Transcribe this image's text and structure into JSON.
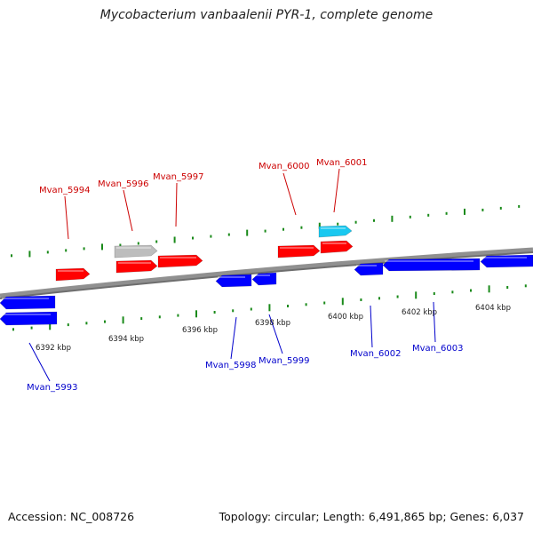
{
  "title": "Mycobacterium vanbaalenii PYR-1, complete genome",
  "footer": {
    "accession": "Accession: NC_008726",
    "summary": "Topology: circular; Length: 6,491,865 bp; Genes: 6,037"
  },
  "colors": {
    "forward_gene": "#ff0000",
    "reverse_gene": "#0000ff",
    "highlight_gene": "#19c8f0",
    "pseudo_gene": "#bdbdbd",
    "backbone": "#888888",
    "ticks": "#1a8a1a",
    "forward_label": "#cc0000",
    "reverse_label": "#0000cc"
  },
  "axis": {
    "unit": "kbp",
    "ticks": [
      {
        "label": "6392 kbp"
      },
      {
        "label": "6394 kbp"
      },
      {
        "label": "6396 kbp"
      },
      {
        "label": "6398 kbp"
      },
      {
        "label": "6400 kbp"
      },
      {
        "label": "6402 kbp"
      },
      {
        "label": "6404 kbp"
      }
    ]
  },
  "genes": [
    {
      "name": "Mvan_5993",
      "strand": "reverse",
      "labeled": true
    },
    {
      "name": "Mvan_5994",
      "strand": "forward",
      "labeled": true
    },
    {
      "name": "Mvan_5996",
      "strand": "forward",
      "labeled": true
    },
    {
      "name": "Mvan_5997",
      "strand": "forward",
      "labeled": true
    },
    {
      "name": "Mvan_5998",
      "strand": "reverse",
      "labeled": true
    },
    {
      "name": "Mvan_5999",
      "strand": "reverse",
      "labeled": true
    },
    {
      "name": "Mvan_6000",
      "strand": "forward",
      "labeled": true
    },
    {
      "name": "Mvan_6001",
      "strand": "forward",
      "labeled": true
    },
    {
      "name": "Mvan_6002",
      "strand": "reverse",
      "labeled": true
    },
    {
      "name": "Mvan_6003",
      "strand": "reverse",
      "labeled": true
    }
  ]
}
